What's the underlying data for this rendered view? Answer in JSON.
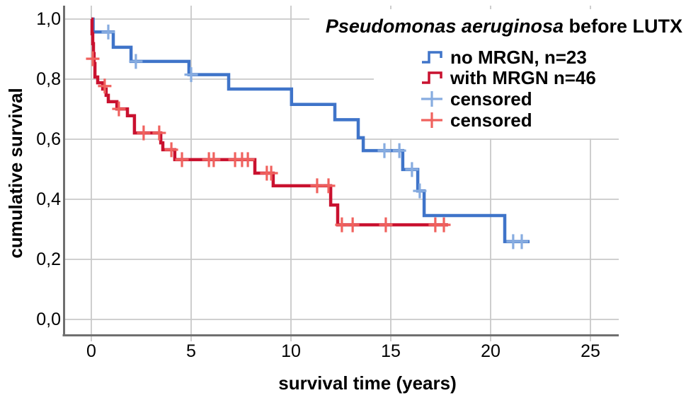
{
  "chart_data": {
    "type": "line",
    "variant": "kaplan_meier_step",
    "title_italic": "Pseudomonas aeruginosa",
    "title_rest": " before LUTX",
    "xlabel": "survival time (years)",
    "ylabel": "cumulative survival",
    "x_tick_labels": [
      "0",
      "5",
      "10",
      "15",
      "20",
      "25"
    ],
    "x_tick_values": [
      0,
      5,
      10,
      15,
      20,
      25
    ],
    "y_tick_labels": [
      "0,0",
      "0,2",
      "0,4",
      "0,6",
      "0,8",
      "1,0"
    ],
    "y_tick_values": [
      0,
      0.2,
      0.4,
      0.6,
      0.8,
      1.0
    ],
    "xlim": [
      0,
      26.4
    ],
    "ylim": [
      0,
      1.04
    ],
    "grid": true,
    "decimal_separator": ",",
    "legend_position": "top-right",
    "colors": {
      "grid": "#c9c9c9",
      "axis": "#6f6f6f",
      "background": "#ffffff",
      "text": "#000000",
      "blue_curve": "#3f74c9",
      "blue_censor": "#87ace0",
      "red_curve": "#c9112f",
      "red_censor": "#f0625e"
    },
    "series": [
      {
        "name": "no MRGN, n=23",
        "n": 23,
        "color": "#3f74c9",
        "censor_color": "#87ace0",
        "start": [
          0,
          1.0
        ],
        "drops": [
          [
            0.09,
            0.957
          ],
          [
            1.1,
            0.906
          ],
          [
            1.99,
            0.859
          ],
          [
            4.89,
            0.815
          ],
          [
            6.88,
            0.767
          ],
          [
            10.03,
            0.716
          ],
          [
            12.2,
            0.665
          ],
          [
            13.37,
            0.605
          ],
          [
            13.62,
            0.562
          ],
          [
            15.6,
            0.499
          ],
          [
            16.35,
            0.428
          ],
          [
            16.67,
            0.346
          ],
          [
            20.71,
            0.259
          ]
        ],
        "end_time": 21.95,
        "censored": [
          [
            0.85,
            0.957
          ],
          [
            2.23,
            0.859
          ],
          [
            5.0,
            0.815
          ],
          [
            14.68,
            0.562
          ],
          [
            15.43,
            0.562
          ],
          [
            16.06,
            0.499
          ],
          [
            16.45,
            0.428
          ],
          [
            21.13,
            0.259
          ],
          [
            21.56,
            0.259
          ]
        ]
      },
      {
        "name": "with MRGN n=46",
        "n": 46,
        "color": "#c9112f",
        "censor_color": "#f0625e",
        "start": [
          0,
          1.0
        ],
        "drops": [
          [
            0.035,
            0.951
          ],
          [
            0.07,
            0.918
          ],
          [
            0.106,
            0.885
          ],
          [
            0.14,
            0.852
          ],
          [
            0.18,
            0.807
          ],
          [
            0.32,
            0.788
          ],
          [
            0.57,
            0.767
          ],
          [
            0.74,
            0.746
          ],
          [
            0.85,
            0.725
          ],
          [
            1.28,
            0.701
          ],
          [
            1.81,
            0.678
          ],
          [
            2.16,
            0.621
          ],
          [
            3.48,
            0.588
          ],
          [
            3.58,
            0.565
          ],
          [
            4.18,
            0.532
          ],
          [
            8.19,
            0.487
          ],
          [
            9.11,
            0.445
          ],
          [
            11.99,
            0.381
          ],
          [
            12.34,
            0.315
          ]
        ],
        "end_time": 17.87,
        "censored": [
          [
            0.07,
            0.868
          ],
          [
            0.67,
            0.777
          ],
          [
            1.38,
            0.701
          ],
          [
            2.62,
            0.621
          ],
          [
            3.4,
            0.621
          ],
          [
            4.01,
            0.565
          ],
          [
            4.54,
            0.532
          ],
          [
            5.89,
            0.532
          ],
          [
            6.13,
            0.532
          ],
          [
            7.2,
            0.532
          ],
          [
            7.55,
            0.532
          ],
          [
            7.84,
            0.532
          ],
          [
            8.79,
            0.487
          ],
          [
            9.01,
            0.487
          ],
          [
            11.31,
            0.445
          ],
          [
            11.88,
            0.445
          ],
          [
            12.55,
            0.315
          ],
          [
            13.09,
            0.315
          ],
          [
            14.75,
            0.315
          ],
          [
            17.23,
            0.315
          ],
          [
            17.66,
            0.315
          ]
        ]
      }
    ],
    "legend_items": [
      {
        "label": "no MRGN, n=23",
        "symbol": "step",
        "color": "#3f74c9"
      },
      {
        "label": "with MRGN n=46",
        "symbol": "step",
        "color": "#c9112f"
      },
      {
        "label": "censored",
        "symbol": "plus",
        "color": "#87ace0"
      },
      {
        "label": "censored",
        "symbol": "plus",
        "color": "#f0625e"
      }
    ]
  }
}
